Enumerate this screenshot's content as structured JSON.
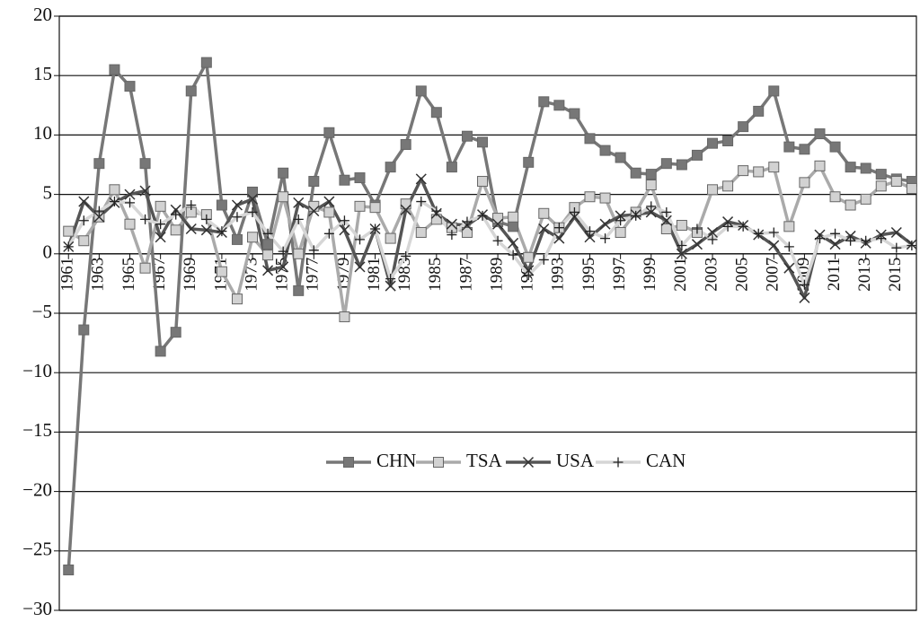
{
  "chart_data": {
    "type": "line",
    "x": [
      1961,
      1962,
      1963,
      1964,
      1965,
      1966,
      1967,
      1968,
      1969,
      1970,
      1971,
      1972,
      1973,
      1974,
      1975,
      1976,
      1977,
      1978,
      1979,
      1980,
      1981,
      1982,
      1983,
      1984,
      1985,
      1986,
      1987,
      1988,
      1989,
      1990,
      1991,
      1992,
      1993,
      1994,
      1995,
      1996,
      1997,
      1998,
      1999,
      2000,
      2001,
      2002,
      2003,
      2004,
      2005,
      2006,
      2007,
      2008,
      2009,
      2010,
      2011,
      2012,
      2013,
      2014,
      2015,
      2016
    ],
    "xlim": [
      1960.4,
      2016.3
    ],
    "xticks": [
      1961,
      1963,
      1965,
      1967,
      1969,
      1971,
      1973,
      1975,
      1977,
      1979,
      1981,
      1983,
      1985,
      1987,
      1989,
      1991,
      1993,
      1995,
      1997,
      1999,
      2001,
      2003,
      2005,
      2007,
      2009,
      2011,
      2013,
      2015
    ],
    "ylim": [
      -30,
      20
    ],
    "yticks": [
      {
        "value": -30,
        "label": "−30"
      },
      {
        "value": -25,
        "label": "−25"
      },
      {
        "value": -20,
        "label": "−20"
      },
      {
        "value": -15,
        "label": "−15"
      },
      {
        "value": -10,
        "label": "−10"
      },
      {
        "value": -5,
        "label": "−5"
      },
      0,
      5,
      10,
      15,
      20
    ],
    "grid": true,
    "legend": "center",
    "series": [
      {
        "name": "CHN",
        "color": "#777777",
        "marker": "square",
        "marker_color": "#777777",
        "values": [
          -26.6,
          -6.4,
          7.6,
          15.5,
          14.1,
          7.6,
          -8.2,
          -6.6,
          13.7,
          16.1,
          4.1,
          1.2,
          5.2,
          0.8,
          6.8,
          -3.1,
          6.1,
          10.2,
          6.2,
          6.4,
          4.1,
          7.3,
          9.2,
          13.7,
          11.9,
          7.3,
          9.9,
          9.4,
          2.7,
          2.3,
          7.7,
          12.8,
          12.5,
          11.8,
          9.7,
          8.7,
          8.1,
          6.8,
          6.7,
          7.6,
          7.5,
          8.3,
          9.3,
          9.5,
          10.7,
          12.0,
          13.7,
          9.0,
          8.8,
          10.1,
          9.0,
          7.3,
          7.2,
          6.7,
          6.3,
          6.1
        ]
      },
      {
        "name": "TSA",
        "color": "#aaaaaa",
        "marker": "square",
        "marker_color": "#d2d2d2",
        "values": [
          1.9,
          1.1,
          3.1,
          5.4,
          2.5,
          -1.2,
          4.0,
          2.0,
          3.5,
          3.3,
          -1.5,
          -3.8,
          1.4,
          -0.1,
          4.8,
          0.0,
          4.0,
          3.5,
          -5.3,
          4.0,
          3.9,
          1.3,
          4.2,
          1.8,
          2.9,
          2.2,
          1.8,
          6.1,
          3.0,
          3.1,
          -0.3,
          3.4,
          2.2,
          3.9,
          4.8,
          4.7,
          1.8,
          3.5,
          5.8,
          2.1,
          2.4,
          1.8,
          5.4,
          5.7,
          7.0,
          6.9,
          7.3,
          2.3,
          6.0,
          7.4,
          4.8,
          4.1,
          4.6,
          5.7,
          6.1,
          5.5
        ]
      },
      {
        "name": "USA",
        "color": "#555555",
        "marker": "x",
        "marker_color": "#333333",
        "values": [
          0.6,
          4.4,
          3.1,
          4.3,
          5.0,
          5.3,
          1.4,
          3.7,
          2.1,
          2.0,
          1.8,
          4.1,
          4.6,
          -1.4,
          -1.1,
          4.3,
          3.6,
          4.4,
          2.0,
          -1.1,
          2.1,
          -2.7,
          3.7,
          6.3,
          3.4,
          2.5,
          2.4,
          3.3,
          2.5,
          0.9,
          -1.4,
          2.1,
          1.3,
          3.1,
          1.4,
          2.5,
          3.2,
          3.3,
          3.5,
          2.8,
          0.0,
          0.8,
          1.8,
          2.7,
          2.4,
          1.6,
          0.7,
          -1.2,
          -3.7,
          1.6,
          0.8,
          1.5,
          0.9,
          1.6,
          1.8,
          0.8
        ]
      },
      {
        "name": "CAN",
        "color": "#d6d6d6",
        "marker": "plus",
        "marker_color": "#222222",
        "values": [
          0.6,
          2.8,
          3.6,
          4.4,
          4.3,
          2.9,
          2.5,
          3.3,
          4.1,
          2.9,
          1.9,
          3.1,
          3.5,
          1.7,
          0.2,
          2.9,
          0.3,
          1.7,
          2.8,
          1.2,
          2.1,
          -2.1,
          -0.2,
          4.4,
          3.6,
          1.6,
          2.7,
          3.2,
          1.1,
          -0.1,
          -1.8,
          -0.5,
          2.2,
          3.5,
          1.9,
          1.3,
          2.8,
          3.2,
          4.0,
          3.5,
          0.7,
          2.1,
          1.2,
          2.3,
          2.3,
          1.7,
          1.8,
          0.6,
          -2.6,
          1.3,
          1.7,
          1.1,
          1.1,
          1.3,
          0.5,
          0.7
        ]
      }
    ]
  }
}
